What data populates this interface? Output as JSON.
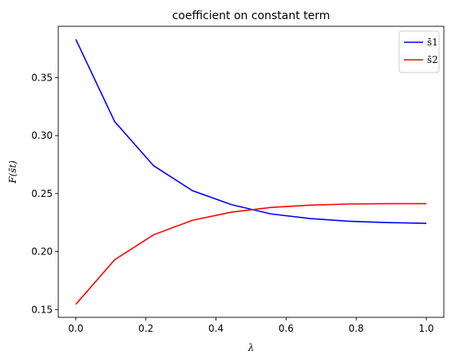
{
  "chart_data": {
    "type": "line",
    "title": "coefficient on constant term",
    "xlabel": "λ",
    "ylabel": "F(s̄t)",
    "x": [
      0.0,
      0.111,
      0.222,
      0.333,
      0.444,
      0.556,
      0.667,
      0.778,
      0.889,
      1.0
    ],
    "series": [
      {
        "name": "s̄1",
        "color": "#0000ff",
        "values": [
          0.383,
          0.312,
          0.274,
          0.2525,
          0.2405,
          0.2325,
          0.2285,
          0.2262,
          0.225,
          0.2244
        ]
      },
      {
        "name": "s̄2",
        "color": "#ff0000",
        "values": [
          0.1545,
          0.193,
          0.2145,
          0.227,
          0.234,
          0.238,
          0.24,
          0.241,
          0.2413,
          0.2413
        ]
      }
    ],
    "xlim": [
      -0.05,
      1.05
    ],
    "ylim": [
      0.1433,
      0.3942
    ],
    "xticks": [
      0.0,
      0.2,
      0.4,
      0.6,
      0.8,
      1.0
    ],
    "xtick_labels": [
      "0.0",
      "0.2",
      "0.4",
      "0.6",
      "0.8",
      "1.0"
    ],
    "yticks": [
      0.15,
      0.2,
      0.25,
      0.3,
      0.35
    ],
    "ytick_labels": [
      "0.15",
      "0.20",
      "0.25",
      "0.30",
      "0.35"
    ],
    "grid": false,
    "legend": "top-right"
  }
}
